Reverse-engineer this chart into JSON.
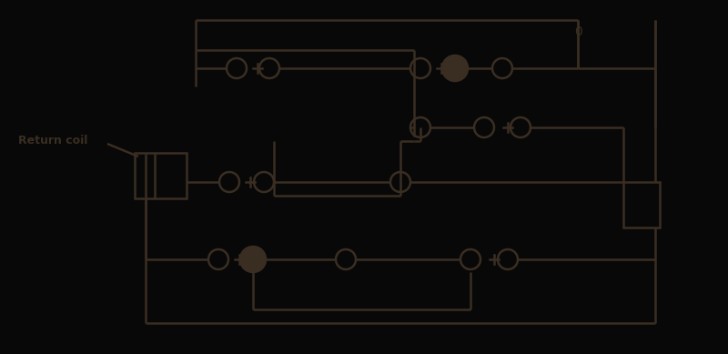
{
  "bg_color": "#080808",
  "line_color": "#3a2e22",
  "fill_color": "#3a2e22",
  "line_width": 1.8,
  "fig_width": 8.0,
  "fig_height": 3.89,
  "label_return_coil": "Return coil",
  "label_0": "0",
  "label_fontsize": 9,
  "label_fontsize_0": 10
}
